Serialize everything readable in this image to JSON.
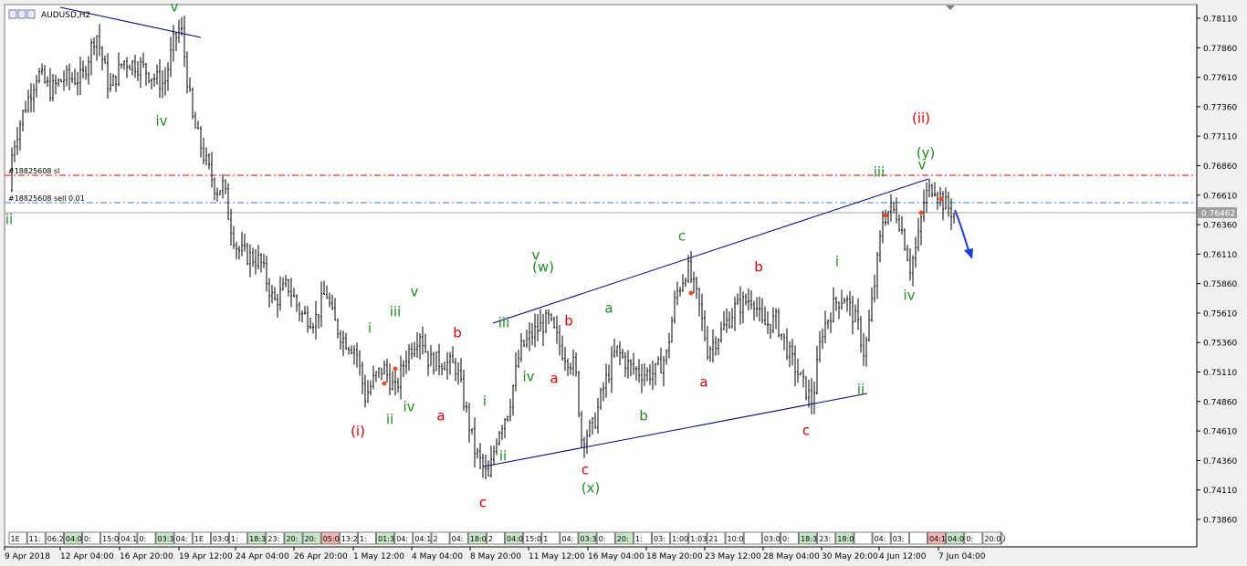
{
  "window": {
    "title": "AUDUSD,H2",
    "icons": [
      "window-menu-icon",
      "minimize-icon",
      "restore-icon"
    ]
  },
  "colors": {
    "background": "#ffffff",
    "frame": "#f0f0f0",
    "candles": "#000000",
    "trendline": "#000080",
    "stop_line": "#dc0000",
    "entry_line": "#3c82c8",
    "price_line": "#a0a0a0",
    "wave_green": "#228B22",
    "wave_red": "#e00000",
    "arrow": "#1e3cdc"
  },
  "order_labels": {
    "stop_loss": "#18825608 sl",
    "sell": "#18825608 sell 0.01"
  },
  "current_price": "0.76462",
  "chart_data": {
    "type": "candlestick",
    "symbol": "AUDUSD",
    "timeframe": "H2",
    "ylim": [
      0.7372,
      0.7818
    ],
    "yticks": [
      "0.78110",
      "0.77860",
      "0.77610",
      "0.77360",
      "0.77110",
      "0.76860",
      "0.76610",
      "0.76360",
      "0.76110",
      "0.75860",
      "0.75610",
      "0.75360",
      "0.75110",
      "0.74860",
      "0.74610",
      "0.74360",
      "0.74110",
      "0.73860"
    ],
    "xticks": [
      "9 Apr 2018",
      "12 Apr 04:00",
      "16 Apr 20:00",
      "19 Apr 12:00",
      "24 Apr 04:00",
      "26 Apr 20:00",
      "1 May 12:00",
      "4 May 04:00",
      "8 May 20:00",
      "11 May 12:00",
      "16 May 04:00",
      "18 May 20:00",
      "23 May 12:00",
      "28 May 04:00",
      "30 May 20:00",
      "4 Jun 12:00",
      "7 Jun 04:00"
    ],
    "price_path": [
      [
        0,
        0.7665
      ],
      [
        12,
        0.771
      ],
      [
        22,
        0.7735
      ],
      [
        36,
        0.7765
      ],
      [
        50,
        0.775
      ],
      [
        65,
        0.776
      ],
      [
        85,
        0.776
      ],
      [
        100,
        0.78
      ],
      [
        115,
        0.775
      ],
      [
        130,
        0.7775
      ],
      [
        150,
        0.777
      ],
      [
        165,
        0.776
      ],
      [
        175,
        0.7755
      ],
      [
        185,
        0.779
      ],
      [
        193,
        0.7805
      ],
      [
        200,
        0.776
      ],
      [
        206,
        0.7725
      ],
      [
        220,
        0.769
      ],
      [
        232,
        0.7665
      ],
      [
        240,
        0.767
      ],
      [
        246,
        0.764
      ],
      [
        255,
        0.7615
      ],
      [
        265,
        0.761
      ],
      [
        280,
        0.7605
      ],
      [
        295,
        0.757
      ],
      [
        310,
        0.7585
      ],
      [
        325,
        0.756
      ],
      [
        340,
        0.7555
      ],
      [
        352,
        0.758
      ],
      [
        360,
        0.7555
      ],
      [
        370,
        0.754
      ],
      [
        385,
        0.753
      ],
      [
        395,
        0.749
      ],
      [
        405,
        0.7505
      ],
      [
        415,
        0.7515
      ],
      [
        428,
        0.7495
      ],
      [
        440,
        0.7525
      ],
      [
        455,
        0.7545
      ],
      [
        465,
        0.752
      ],
      [
        480,
        0.752
      ],
      [
        495,
        0.7515
      ],
      [
        505,
        0.748
      ],
      [
        515,
        0.7445
      ],
      [
        530,
        0.742
      ],
      [
        540,
        0.746
      ],
      [
        552,
        0.748
      ],
      [
        565,
        0.753
      ],
      [
        580,
        0.7545
      ],
      [
        596,
        0.7555
      ],
      [
        610,
        0.753
      ],
      [
        625,
        0.7515
      ],
      [
        632,
        0.7455
      ],
      [
        645,
        0.7465
      ],
      [
        655,
        0.7495
      ],
      [
        670,
        0.753
      ],
      [
        685,
        0.7515
      ],
      [
        700,
        0.751
      ],
      [
        712,
        0.751
      ],
      [
        725,
        0.7525
      ],
      [
        735,
        0.7575
      ],
      [
        748,
        0.76
      ],
      [
        760,
        0.757
      ],
      [
        770,
        0.753
      ],
      [
        785,
        0.7545
      ],
      [
        800,
        0.7565
      ],
      [
        820,
        0.7575
      ],
      [
        830,
        0.755
      ],
      [
        845,
        0.7555
      ],
      [
        860,
        0.7525
      ],
      [
        875,
        0.75
      ],
      [
        885,
        0.7485
      ],
      [
        895,
        0.7545
      ],
      [
        910,
        0.757
      ],
      [
        920,
        0.7575
      ],
      [
        935,
        0.755
      ],
      [
        942,
        0.7525
      ],
      [
        952,
        0.758
      ],
      [
        962,
        0.764
      ],
      [
        970,
        0.765
      ],
      [
        978,
        0.7645
      ],
      [
        985,
        0.7625
      ],
      [
        992,
        0.76
      ],
      [
        1000,
        0.762
      ],
      [
        1008,
        0.766
      ],
      [
        1018,
        0.767
      ],
      [
        1028,
        0.7655
      ],
      [
        1040,
        0.7645
      ]
    ]
  },
  "wave_labels": [
    {
      "text": "ii",
      "color": "green",
      "x": 10,
      "y": 241
    },
    {
      "text": "v",
      "color": "green",
      "x": 191,
      "y": 8
    },
    {
      "text": "iv",
      "color": "green",
      "x": 177,
      "y": 133
    },
    {
      "text": "(i)",
      "color": "red",
      "x": 392,
      "y": 473
    },
    {
      "text": "i",
      "color": "green",
      "x": 405,
      "y": 360
    },
    {
      "text": "ii",
      "color": "green",
      "x": 427,
      "y": 460
    },
    {
      "text": "iii",
      "color": "green",
      "x": 433,
      "y": 342
    },
    {
      "text": "iv",
      "color": "green",
      "x": 448,
      "y": 446
    },
    {
      "text": "v",
      "color": "green",
      "x": 454,
      "y": 320
    },
    {
      "text": "a",
      "color": "red",
      "x": 483,
      "y": 456
    },
    {
      "text": "b",
      "color": "red",
      "x": 501,
      "y": 365
    },
    {
      "text": "c",
      "color": "red",
      "x": 529,
      "y": 551
    },
    {
      "text": "i",
      "color": "green",
      "x": 531,
      "y": 440
    },
    {
      "text": "ii",
      "color": "green",
      "x": 551,
      "y": 500
    },
    {
      "text": "iii",
      "color": "green",
      "x": 552,
      "y": 354
    },
    {
      "text": "iv",
      "color": "green",
      "x": 579,
      "y": 413
    },
    {
      "text": "v",
      "color": "green",
      "x": 587,
      "y": 280
    },
    {
      "text": "(w)",
      "color": "green",
      "x": 595,
      "y": 293
    },
    {
      "text": "b",
      "color": "red",
      "x": 623,
      "y": 352
    },
    {
      "text": "a",
      "color": "red",
      "x": 607,
      "y": 415
    },
    {
      "text": "c",
      "color": "red",
      "x": 641,
      "y": 515
    },
    {
      "text": "(x)",
      "color": "green",
      "x": 647,
      "y": 535
    },
    {
      "text": "a",
      "color": "green",
      "x": 667,
      "y": 338
    },
    {
      "text": "b",
      "color": "green",
      "x": 705,
      "y": 456
    },
    {
      "text": "c",
      "color": "green",
      "x": 747,
      "y": 259
    },
    {
      "text": "a",
      "color": "red",
      "x": 771,
      "y": 419
    },
    {
      "text": "b",
      "color": "red",
      "x": 831,
      "y": 293
    },
    {
      "text": "c",
      "color": "red",
      "x": 883,
      "y": 472
    },
    {
      "text": "i",
      "color": "green",
      "x": 917,
      "y": 287
    },
    {
      "text": "ii",
      "color": "green",
      "x": 943,
      "y": 427
    },
    {
      "text": "iii",
      "color": "green",
      "x": 963,
      "y": 189
    },
    {
      "text": "iv",
      "color": "green",
      "x": 996,
      "y": 324
    },
    {
      "text": "v",
      "color": "green",
      "x": 1010,
      "y": 181
    },
    {
      "text": "(y)",
      "color": "green",
      "x": 1014,
      "y": 168
    },
    {
      "text": "(ii)",
      "color": "red",
      "x": 1009,
      "y": 130
    }
  ],
  "bottom_labels": [
    "1E",
    "11:",
    "06:2",
    "04:00",
    "0:",
    "15:0",
    "04:1",
    "0:",
    "03:30",
    "04:",
    "1E",
    "03:00",
    "1:",
    "18:3",
    "23:",
    "20:",
    "20:",
    "05:00",
    "13:20",
    "1:",
    "01:30",
    "04:",
    "04:1",
    "2",
    "04:",
    "18:00",
    "2",
    "04:00",
    "15:0",
    "1",
    "04:",
    "03:30",
    "0:",
    "20:",
    "1:",
    "03:",
    "1:00",
    "1:03",
    "21",
    "10:00",
    "",
    "03:00",
    "0:",
    "18:3",
    "23:",
    "18:00",
    "",
    "04:",
    "03:",
    "",
    "04:15",
    "04:00",
    "0:",
    "20:00"
  ]
}
